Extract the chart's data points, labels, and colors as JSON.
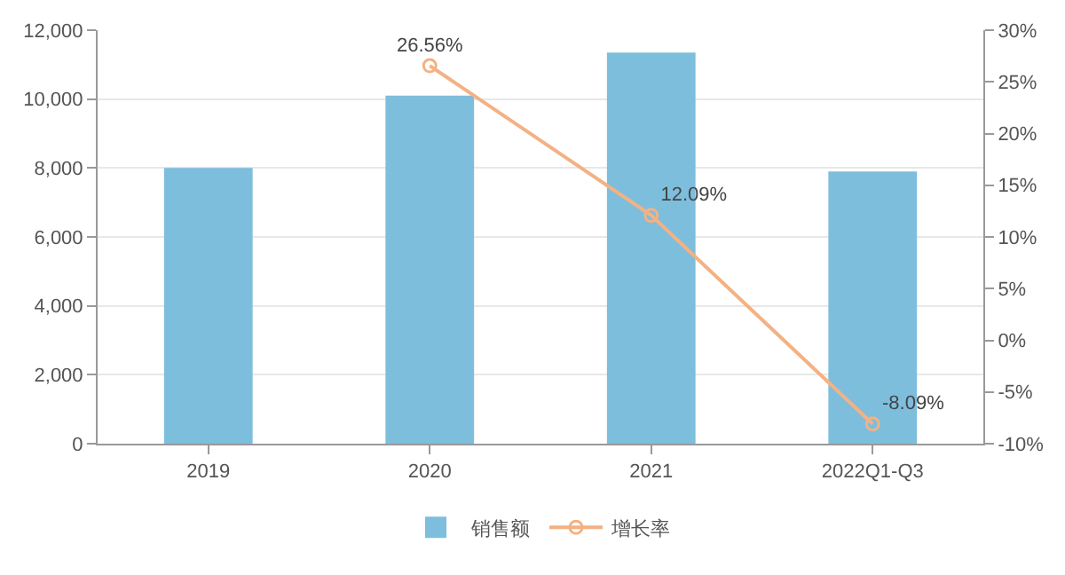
{
  "chart_data": {
    "type": "bar",
    "categories": [
      "2019",
      "2020",
      "2021",
      "2022Q1-Q3"
    ],
    "series": [
      {
        "name": "销售额",
        "color": "#7dbedd",
        "values": [
          8000,
          10100,
          11350,
          7900
        ]
      },
      {
        "name": "增长率",
        "type": "line",
        "axis": "y2",
        "color": "#f4b183",
        "values": [
          null,
          26.56,
          12.09,
          -8.09
        ],
        "value_labels": [
          null,
          "26.56%",
          "12.09%",
          "-8.09%"
        ]
      }
    ],
    "ylim": [
      0,
      12000
    ],
    "yticks": [
      0,
      {
        "value": 2000,
        "label": "2,000"
      },
      {
        "value": 4000,
        "label": "4,000"
      },
      {
        "value": 6000,
        "label": "6,000"
      },
      {
        "value": 8000,
        "label": "8,000"
      },
      {
        "value": 10000,
        "label": "10,000"
      },
      {
        "value": 12000,
        "label": "12,000"
      }
    ],
    "y2lim": [
      -10,
      30
    ],
    "y2ticks": [
      {
        "value": -10,
        "label": "-10%"
      },
      {
        "value": -5,
        "label": "-5%"
      },
      {
        "value": 0,
        "label": "0%"
      },
      {
        "value": 5,
        "label": "5%"
      },
      {
        "value": 10,
        "label": "10%"
      },
      {
        "value": 15,
        "label": "15%"
      },
      {
        "value": 20,
        "label": "20%"
      },
      {
        "value": 25,
        "label": "25%"
      },
      {
        "value": 30,
        "label": "30%"
      }
    ],
    "grid": "y",
    "legend": "bottom",
    "marker": "circle",
    "line_style": "solid"
  }
}
